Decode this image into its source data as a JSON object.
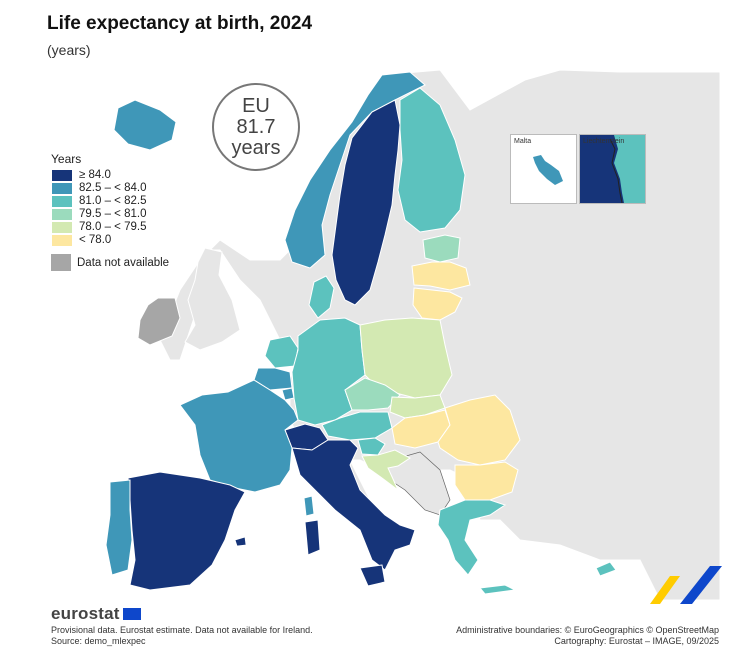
{
  "title": "Life expectancy at birth, 2024",
  "subtitle": "(years)",
  "eu_badge": {
    "line1": "EU",
    "line2": "81.7",
    "line3": "years"
  },
  "legend": {
    "title": "Years",
    "classes": [
      {
        "label": "≥ 84.0",
        "color": "#163479"
      },
      {
        "label": "82.5 – < 84.0",
        "color": "#3f97b8"
      },
      {
        "label": "81.0 – < 82.5",
        "color": "#5cc2be"
      },
      {
        "label": "79.5 – < 81.0",
        "color": "#9bdbbd"
      },
      {
        "label": "78.0 – < 79.5",
        "color": "#d3e9b2"
      },
      {
        "label": "< 78.0",
        "color": "#fde7a0"
      }
    ],
    "na_label": "Data not available",
    "na_color": "#a6a6a6"
  },
  "insets": [
    {
      "name": "Malta",
      "label": "Malta"
    },
    {
      "name": "Liechtenstein",
      "label": "Liechtenstein"
    }
  ],
  "countries": {
    "Iceland": "82.5 – < 84.0",
    "Norway": "82.5 – < 84.0",
    "Sweden": "≥ 84.0",
    "Finland": "81.0 – < 82.5",
    "Estonia": "79.5 – < 81.0",
    "Latvia": "< 78.0",
    "Lithuania": "< 78.0",
    "Denmark": "81.0 – < 82.5",
    "Ireland": "Data not available",
    "Netherlands": "81.0 – < 82.5",
    "Belgium": "82.5 – < 84.0",
    "Luxembourg": "82.5 – < 84.0",
    "Germany": "81.0 – < 82.5",
    "Poland": "78.0 – < 79.5",
    "Czechia": "79.5 – < 81.0",
    "Slovakia": "78.0 – < 79.5",
    "Austria": "81.0 – < 82.5",
    "Hungary": "< 78.0",
    "Romania": "< 78.0",
    "Bulgaria": "< 78.0",
    "Slovenia": "81.0 – < 82.5",
    "Croatia": "78.0 – < 79.5",
    "France": "82.5 – < 84.0",
    "Switzerland": "≥ 84.0",
    "Liechtenstein": "≥ 84.0",
    "Italy": "≥ 84.0",
    "Spain": "≥ 84.0",
    "Portugal": "82.5 – < 84.0",
    "Malta": "82.5 – < 84.0",
    "Greece": "81.0 – < 82.5",
    "Cyprus": "81.0 – < 82.5"
  },
  "footer": {
    "logo": "eurostat",
    "note1": "Provisional data. Eurostat estimate. Data not available for Ireland.",
    "note2": "Source: demo_mlexpec",
    "credit1": "Administrative boundaries: © EuroGeographics © OpenStreetMap",
    "credit2": "Cartography: Eurostat – IMAGE, 09/2025"
  }
}
